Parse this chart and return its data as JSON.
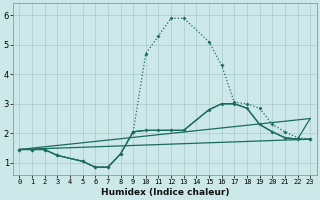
{
  "xlabel": "Humidex (Indice chaleur)",
  "bg_color": "#cce8e8",
  "grid_color": "#aacccc",
  "line_color": "#1a6b60",
  "xlim": [
    -0.5,
    23.5
  ],
  "ylim": [
    0.6,
    6.4
  ],
  "xticks": [
    0,
    1,
    2,
    3,
    4,
    5,
    6,
    7,
    8,
    9,
    10,
    11,
    12,
    13,
    14,
    15,
    16,
    17,
    18,
    19,
    20,
    21,
    22,
    23
  ],
  "yticks": [
    1,
    2,
    3,
    4,
    5,
    6
  ],
  "line1_x": [
    0,
    1,
    2,
    3,
    5,
    6,
    7,
    8,
    9,
    10,
    11,
    12,
    13,
    15,
    16,
    17,
    18,
    19,
    20,
    21,
    22,
    23
  ],
  "line1_y": [
    1.45,
    1.45,
    1.45,
    1.25,
    1.05,
    0.85,
    0.85,
    1.3,
    2.05,
    4.7,
    5.3,
    5.9,
    5.9,
    5.1,
    4.3,
    3.05,
    3.0,
    2.85,
    2.3,
    2.05,
    1.85,
    1.8
  ],
  "line2_x": [
    0,
    1,
    2,
    3,
    5,
    6,
    7,
    8,
    9,
    10,
    11,
    12,
    13,
    15,
    16,
    17,
    18,
    19,
    20,
    21,
    22,
    23
  ],
  "line2_y": [
    1.45,
    1.45,
    1.45,
    1.25,
    1.05,
    0.85,
    0.85,
    1.3,
    2.05,
    2.1,
    2.1,
    2.1,
    2.1,
    2.8,
    3.0,
    3.0,
    2.85,
    2.3,
    2.05,
    1.85,
    1.8,
    1.8
  ],
  "line3_x": [
    0,
    23
  ],
  "line3_y": [
    1.45,
    1.8
  ],
  "line4_x": [
    0,
    23
  ],
  "line4_y": [
    1.45,
    2.5
  ],
  "line5_x": [
    0,
    1,
    2,
    3,
    5,
    6,
    7,
    8,
    9,
    10,
    11,
    12,
    13,
    15,
    16,
    17,
    18,
    19,
    20,
    21,
    22,
    23
  ],
  "line5_y": [
    1.45,
    1.45,
    1.45,
    1.25,
    1.05,
    0.85,
    0.85,
    1.3,
    2.05,
    2.1,
    2.1,
    2.1,
    2.1,
    2.8,
    3.0,
    3.0,
    2.85,
    2.3,
    2.05,
    1.85,
    1.8,
    2.5
  ]
}
